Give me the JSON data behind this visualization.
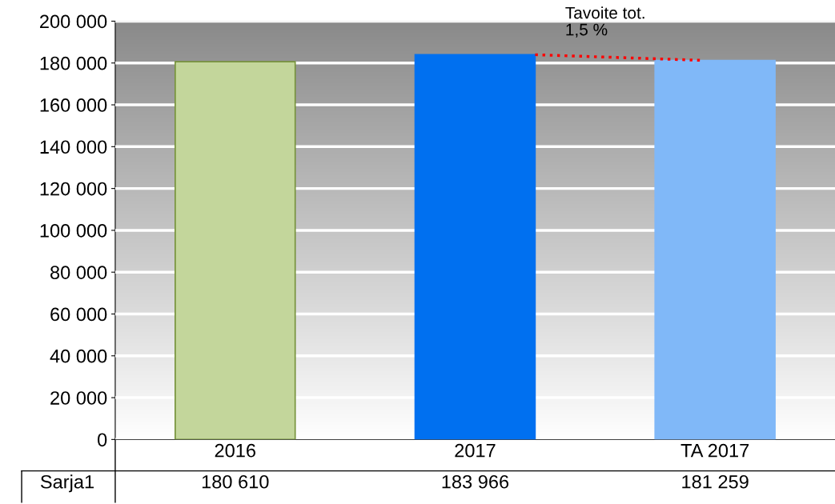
{
  "chart_data": {
    "type": "bar",
    "categories": [
      "2016",
      "2017",
      "TA 2017"
    ],
    "series": [
      {
        "name": "Sarja1",
        "values": [
          180610,
          183966,
          181259
        ],
        "colors": [
          "#c3d69b",
          "#0070f0",
          "#80b8f8"
        ]
      }
    ],
    "ylim": [
      0,
      200000
    ],
    "yticks": [
      0,
      {
        "value": 20000,
        "label": "20 000"
      },
      {
        "value": 40000,
        "label": "40 000"
      },
      {
        "value": 60000,
        "label": "60 000"
      },
      {
        "value": 80000,
        "label": "80 000"
      },
      {
        "value": 100000,
        "label": "100 000"
      },
      {
        "value": 120000,
        "label": "120 000"
      },
      {
        "value": 140000,
        "label": "140 000"
      },
      {
        "value": 160000,
        "label": "160 000"
      },
      {
        "value": 180000,
        "label": "180 000"
      },
      {
        "value": 200000,
        "label": "200 000"
      }
    ],
    "grid": "y",
    "data_labels": true,
    "annotations": [
      "Tavoite tot.\n1,5 %"
    ]
  }
}
